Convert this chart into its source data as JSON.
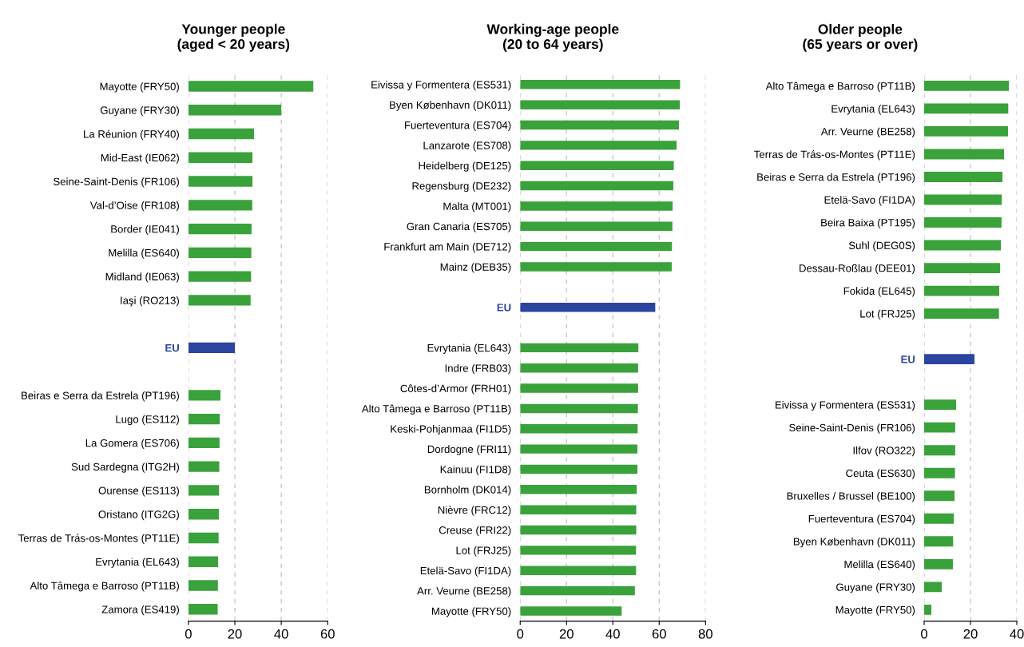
{
  "chart_data": [
    {
      "type": "bar",
      "orientation": "horizontal",
      "title": "Younger people\n(aged < 20 years)",
      "grid": "x",
      "categories": [
        "Mayotte (FRY50)",
        "Guyane (FRY30)",
        "La Réunion (FRY40)",
        "Mid-East (IE062)",
        "Seine-Saint-Denis (FR106)",
        "Val-d’Oise (FR108)",
        "Border (IE041)",
        "Melilla (ES640)",
        "Midland (IE063)",
        "Iaşi (RO213)",
        null,
        "EU",
        null,
        "Beiras e Serra da Estrela (PT196)",
        "Lugo (ES112)",
        "La Gomera (ES706)",
        "Sud Sardegna (ITG2H)",
        "Ourense (ES113)",
        "Oristano (ITG2G)",
        "Terras de Trás-os-Montes (PT11E)",
        "Evrytania (EL643)",
        "Alto Tâmega e Barroso (PT11B)",
        "Zamora (ES419)"
      ],
      "values": [
        53.8,
        40,
        28.3,
        27.6,
        27.6,
        27.5,
        27.2,
        27.1,
        27,
        26.8,
        null,
        20,
        null,
        13.8,
        13.5,
        13.4,
        13.3,
        13.2,
        13.1,
        13,
        12.8,
        12.7,
        12.6
      ],
      "colors": [
        "#3aa23a",
        "#3aa23a",
        "#3aa23a",
        "#3aa23a",
        "#3aa23a",
        "#3aa23a",
        "#3aa23a",
        "#3aa23a",
        "#3aa23a",
        "#3aa23a",
        "#3aa23a",
        "#2a44a0",
        "#3aa23a",
        "#3aa23a",
        "#3aa23a",
        "#3aa23a",
        "#3aa23a",
        "#3aa23a",
        "#3aa23a",
        "#3aa23a",
        "#3aa23a",
        "#3aa23a",
        "#3aa23a"
      ],
      "xlim": [
        0,
        60
      ],
      "xticks": [
        0,
        20,
        40,
        60
      ]
    },
    {
      "type": "bar",
      "orientation": "horizontal",
      "title": "Working-age people\n(20 to 64 years)",
      "grid": "x",
      "categories": [
        "Eivissa y Formentera (ES531)",
        "Byen København (DK011)",
        "Fuerteventura (ES704)",
        "Lanzarote (ES708)",
        "Heidelberg (DE125)",
        "Regensburg (DE232)",
        "Malta (MT001)",
        "Gran Canaria (ES705)",
        "Frankfurt am Main (DE712)",
        "Mainz (DEB35)",
        null,
        "EU",
        null,
        "Evrytania (EL643)",
        "Indre (FRB03)",
        "Côtes-d’Armor (FRH01)",
        "Alto Tâmega e Barroso (PT11B)",
        "Keski-Pohjanmaa (FI1D5)",
        "Dordogne (FRI11)",
        "Kainuu (FI1D8)",
        "Bornholm (DK014)",
        "Nièvre (FRC12)",
        "Creuse (FRI22)",
        "Lot (FRJ25)",
        "Etelä-Savo (FI1DA)",
        "Arr. Veurne (BE258)",
        "Mayotte (FRY50)"
      ],
      "values": [
        69,
        68.9,
        68.5,
        67.5,
        66.3,
        66.1,
        65.8,
        65.7,
        65.5,
        65.4,
        null,
        58.3,
        null,
        51,
        50.9,
        50.9,
        50.8,
        50.7,
        50.6,
        50.6,
        50.3,
        50.1,
        50.1,
        50,
        50,
        49.5,
        43.8
      ],
      "colors": [
        "#3aa23a",
        "#3aa23a",
        "#3aa23a",
        "#3aa23a",
        "#3aa23a",
        "#3aa23a",
        "#3aa23a",
        "#3aa23a",
        "#3aa23a",
        "#3aa23a",
        "#3aa23a",
        "#2a44a0",
        "#3aa23a",
        "#3aa23a",
        "#3aa23a",
        "#3aa23a",
        "#3aa23a",
        "#3aa23a",
        "#3aa23a",
        "#3aa23a",
        "#3aa23a",
        "#3aa23a",
        "#3aa23a",
        "#3aa23a",
        "#3aa23a",
        "#3aa23a",
        "#3aa23a"
      ],
      "xlim": [
        0,
        80
      ],
      "xticks": [
        0,
        20,
        40,
        60,
        80
      ]
    },
    {
      "type": "bar",
      "orientation": "horizontal",
      "title": "Older people\n(65 years or over)",
      "grid": "x",
      "categories": [
        "Alto Tâmega e Barroso (PT11B)",
        "Evrytania (EL643)",
        "Arr. Veurne (BE258)",
        "Terras de Trás-os-Montes (PT11E)",
        "Beiras e Serra da Estrela (PT196)",
        "Etelä-Savo (FI1DA)",
        "Beira Baixa (PT195)",
        "Suhl (DEG0S)",
        "Dessau-Roßlau (DEE01)",
        "Fokida (EL645)",
        "Lot (FRJ25)",
        null,
        "EU",
        null,
        "Eivissa y Formentera (ES531)",
        "Seine-Saint-Denis (FR106)",
        "Ilfov (RO322)",
        "Ceuta (ES630)",
        "Bruxelles / Brussel (BE100)",
        "Fuerteventura (ES704)",
        "Byen København (DK011)",
        "Melilla (ES640)",
        "Guyane (FRY30)",
        "Mayotte (FRY50)"
      ],
      "values": [
        36.6,
        36.3,
        36.2,
        34.5,
        33.8,
        33.5,
        33.4,
        33.1,
        32.8,
        32.4,
        32.3,
        null,
        21.7,
        null,
        13.8,
        13.4,
        13.4,
        13.3,
        13.1,
        12.8,
        12.5,
        12.4,
        7.6,
        3.1
      ],
      "colors": [
        "#3aa23a",
        "#3aa23a",
        "#3aa23a",
        "#3aa23a",
        "#3aa23a",
        "#3aa23a",
        "#3aa23a",
        "#3aa23a",
        "#3aa23a",
        "#3aa23a",
        "#3aa23a",
        "#3aa23a",
        "#2a44a0",
        "#3aa23a",
        "#3aa23a",
        "#3aa23a",
        "#3aa23a",
        "#3aa23a",
        "#3aa23a",
        "#3aa23a",
        "#3aa23a",
        "#3aa23a",
        "#3aa23a",
        "#3aa23a"
      ],
      "xlim": [
        0,
        40
      ],
      "xticks": [
        0,
        20,
        40
      ]
    }
  ]
}
